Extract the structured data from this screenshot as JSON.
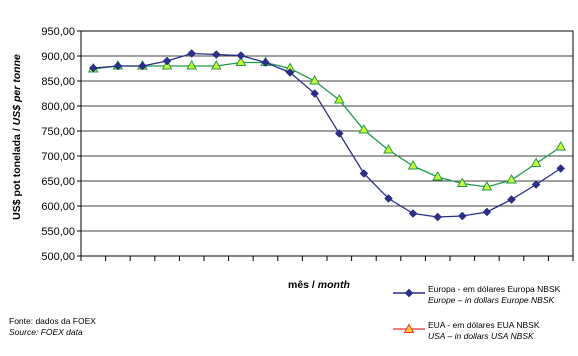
{
  "chart_data": {
    "type": "line",
    "ylabel_pt": "US$ pot tonelada",
    "ylabel_en": "US$ per tonne",
    "xlabel_pt": "mês",
    "xlabel_en": "month",
    "ylim": [
      500,
      950
    ],
    "yticks": [
      "950,00",
      "900,00",
      "850,00",
      "800,00",
      "750,00",
      "700,00",
      "650,00",
      "600,00",
      "550,00",
      "500,00"
    ],
    "ytick_values": [
      950,
      900,
      850,
      800,
      750,
      700,
      650,
      600,
      550,
      500
    ],
    "grid": "horizontal",
    "legend_position": "bottom-right",
    "series": [
      {
        "name": "Europa - em dólares Europa NBSK",
        "name_en": "Europe – in dollars Europe NBSK",
        "color": "#2b2f8c",
        "marker": "diamond",
        "values": [
          876,
          880,
          880,
          890,
          905,
          903,
          901,
          887,
          867,
          825,
          745,
          665,
          615,
          585,
          578,
          580,
          588,
          613,
          643,
          675
        ]
      },
      {
        "name": "EUA - em dólares EUA NBSK",
        "name_en": "USA – in dollars USA NBSK",
        "color": "#1f9a4a",
        "marker_fill": "#ccff33",
        "marker": "triangle",
        "values": [
          874,
          880,
          880,
          880,
          880,
          880,
          887,
          887,
          875,
          850,
          812,
          752,
          712,
          680,
          658,
          645,
          638,
          652,
          685,
          718
        ]
      }
    ]
  },
  "source": {
    "pt": "Fonte: dados da FOEX",
    "en": "Source: FOEX data"
  }
}
